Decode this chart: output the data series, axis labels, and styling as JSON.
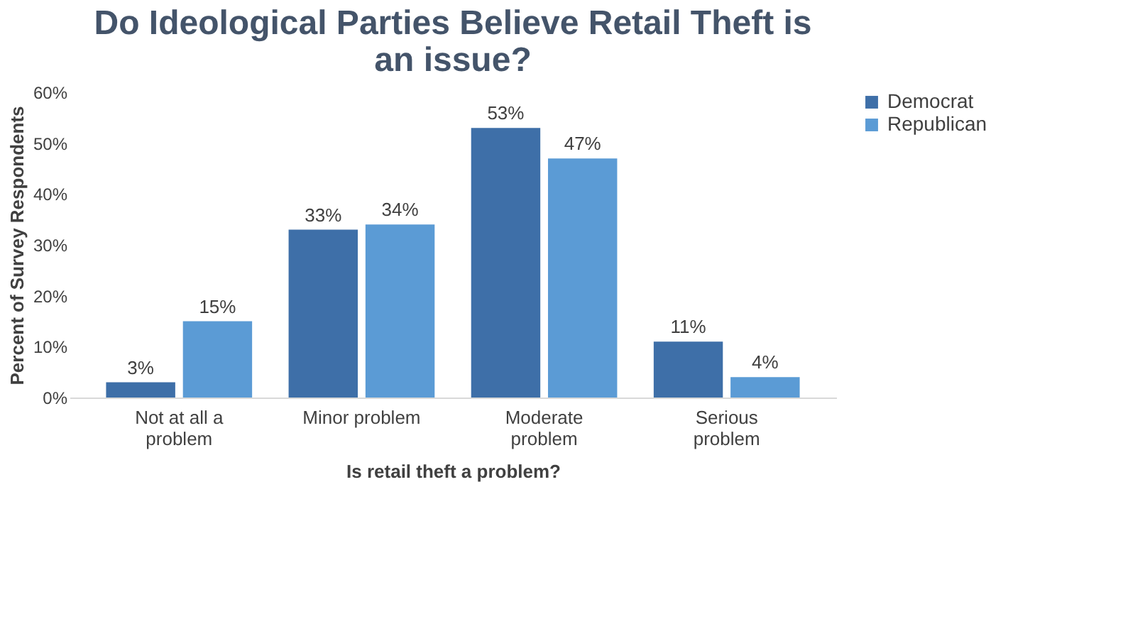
{
  "chart_data": {
    "type": "bar",
    "title": "Do Ideological Parties Believe Retail Theft  is an issue?",
    "xlabel": "Is retail theft a problem?",
    "ylabel": "Percent of Survey Respondents",
    "categories": [
      "Not at all a problem",
      "Minor problem",
      "Moderate problem",
      "Serious problem"
    ],
    "series": [
      {
        "name": "Democrat",
        "color": "#3e6fa8",
        "values": [
          3,
          33,
          53,
          11
        ],
        "value_labels": [
          "3%",
          "33%",
          "53%",
          "11%"
        ]
      },
      {
        "name": "Republican",
        "color": "#5b9bd5",
        "values": [
          15,
          34,
          47,
          4
        ],
        "value_labels": [
          "15%",
          "34%",
          "47%",
          "4%"
        ]
      }
    ],
    "ylim": [
      0,
      60
    ],
    "yticks": [
      {
        "value": 0,
        "label": "0%"
      },
      {
        "value": 10,
        "label": "10%"
      },
      {
        "value": 20,
        "label": "20%"
      },
      {
        "value": 30,
        "label": "30%"
      },
      {
        "value": 40,
        "label": "40%"
      },
      {
        "value": 50,
        "label": "50%"
      },
      {
        "value": 60,
        "label": "60%"
      }
    ],
    "grid": false,
    "legend": "right"
  }
}
